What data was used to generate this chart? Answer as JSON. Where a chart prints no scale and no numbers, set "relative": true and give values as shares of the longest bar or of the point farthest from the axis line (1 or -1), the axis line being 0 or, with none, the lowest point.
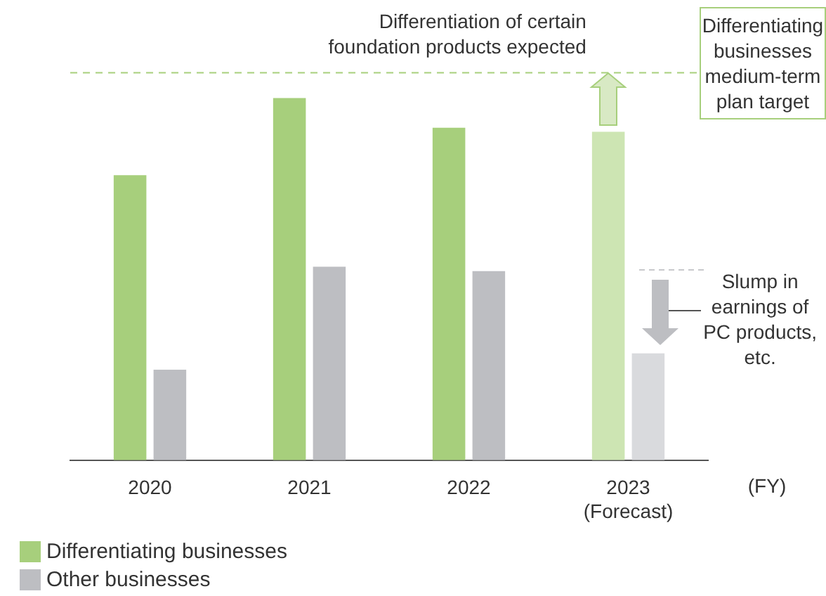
{
  "chart_data": {
    "type": "bar",
    "relative": true,
    "categories": [
      "2020",
      "2021",
      "2022",
      "2023\n(Forecast)"
    ],
    "xlabel": "(FY)",
    "series": [
      {
        "name": "Differentiating businesses",
        "color": "#a7cf7c",
        "colors": [
          "#a7cf7c",
          "#a7cf7c",
          "#a7cf7c",
          "#cde5b3"
        ],
        "values": [
          0.787,
          1,
          0.918,
          0.907
        ]
      },
      {
        "name": "Other businesses",
        "color": "#bdbec2",
        "colors": [
          "#bdbec2",
          "#bdbec2",
          "#bdbec2",
          "#d9dadd"
        ],
        "values": [
          0.25,
          0.534,
          0.522,
          0.295
        ]
      }
    ],
    "ref_lines": [
      {
        "axis": "y",
        "value": 1.07,
        "label": "Differentiating\nbusinesses\nmedium-term\nplan target",
        "color": "#a7cf7c",
        "line_style": "dashed"
      }
    ],
    "annotations": [
      "Differentiation of certain\nfoundation products expected",
      "Slump in\nearnings of\nPC products,\netc."
    ],
    "grid": false,
    "legend": "bottom left",
    "tick_labels": "x"
  }
}
